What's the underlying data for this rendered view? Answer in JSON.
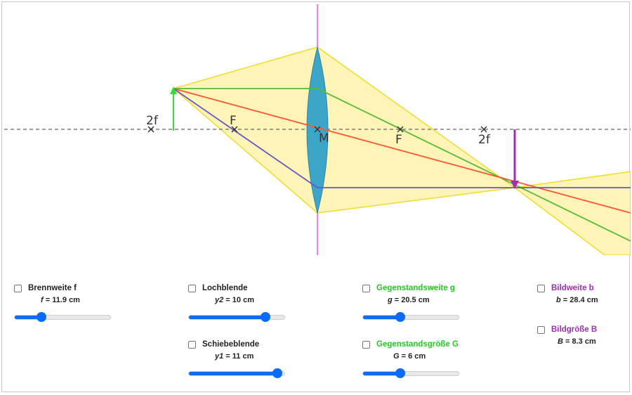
{
  "diagram": {
    "label_2f_left": "2f",
    "label_f_left": "F",
    "label_m": "M",
    "label_f_right": "F",
    "label_2f_right": "2f"
  },
  "colors": {
    "lens": "#3da6c8",
    "optical_axis": "#666666",
    "lens_axis": "#ee82ee",
    "object_arrow": "#33dd33",
    "image_arrow": "#a02db4",
    "ray_parallel": "#55bb33",
    "ray_center": "#ff5533",
    "ray_focal": "#6655cc",
    "light_cone_fill": "#fff3b0",
    "light_cone_edge": "#f0dc28",
    "slider": "#0a6cf4"
  },
  "controls": {
    "brennweite": {
      "label": "Brennweite f",
      "var": "f",
      "value_text": " = 11.9 cm",
      "checked": false,
      "fraction": 0.28
    },
    "lochblende": {
      "label": "Lochblende",
      "var": "y2",
      "value_text": " = 10 cm",
      "checked": false,
      "fraction": 0.8
    },
    "schiebeblende": {
      "label": "Schiebeblende",
      "var": "y1",
      "value_text": " = 11 cm",
      "checked": false,
      "fraction": 0.92
    },
    "gegenstandsweite": {
      "label": "Gegenstandsweite g",
      "var": "g",
      "value_text": " = 20.5 cm",
      "checked": false,
      "fraction": 0.39,
      "color": "#22cc22"
    },
    "gegenstandsgroesse": {
      "label": "Gegenstandsgröße G",
      "var": "G",
      "value_text": " = 6 cm",
      "checked": false,
      "fraction": 0.39,
      "color": "#22cc22"
    },
    "bildweite": {
      "label": "Bildweite b",
      "var": "b",
      "value_text": " = 28.4 cm",
      "checked": false,
      "color": "#9b2fb0"
    },
    "bildgroesse": {
      "label": "Bildgröße B",
      "var": "B",
      "value_text": " = 8.3 cm",
      "checked": false,
      "color": "#9b2fb0"
    }
  }
}
